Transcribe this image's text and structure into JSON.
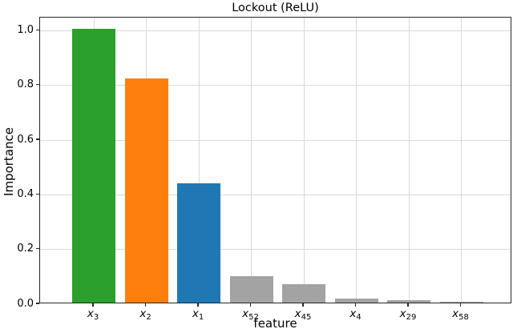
{
  "chart_data": {
    "type": "bar",
    "title": "Lockout (ReLU)",
    "xlabel": "feature",
    "ylabel": "Importance",
    "ylim": [
      0,
      1.048
    ],
    "yticks": [
      0.0,
      0.2,
      0.4,
      0.6,
      0.8,
      1.0
    ],
    "grid": true,
    "grid_color": "#d9d9d9",
    "spine_color": "#262626",
    "categories": [
      {
        "base": "x",
        "sub": "3"
      },
      {
        "base": "x",
        "sub": "2"
      },
      {
        "base": "x",
        "sub": "1"
      },
      {
        "base": "x",
        "sub": "52"
      },
      {
        "base": "x",
        "sub": "45"
      },
      {
        "base": "x",
        "sub": "4"
      },
      {
        "base": "x",
        "sub": "29"
      },
      {
        "base": "x",
        "sub": "58"
      }
    ],
    "values": [
      1.0,
      0.82,
      0.435,
      0.098,
      0.068,
      0.015,
      0.008,
      0.002
    ],
    "bar_colors": [
      "#2ca02c",
      "#ff7f0e",
      "#1f77b4",
      "#a3a3a3",
      "#a3a3a3",
      "#a3a3a3",
      "#a3a3a3",
      "#a3a3a3"
    ]
  }
}
